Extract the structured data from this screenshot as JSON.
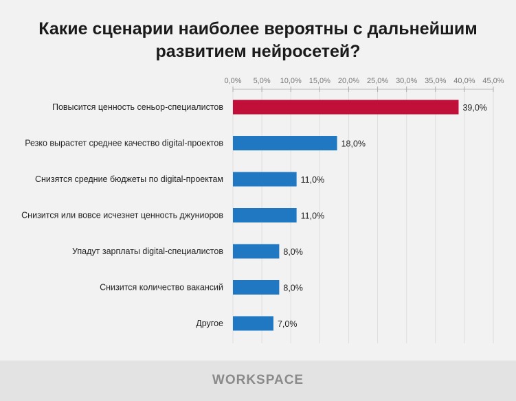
{
  "chart_data": {
    "type": "bar",
    "orientation": "horizontal",
    "title": "Какие сценарии наиболее вероятны с дальнейшим развитием нейросетей?",
    "categories": [
      "Повысится ценность сеньор-специалистов",
      "Резко вырастет среднее качество digital-проектов",
      "Снизятся средние бюджеты по digital-проектам",
      "Снизится или вовсе исчезнет ценность джуниоров",
      "Упадут зарплаты digital-специалистов",
      "Снизится количество вакансий",
      "Другое"
    ],
    "values": [
      39.0,
      18.0,
      11.0,
      11.0,
      8.0,
      8.0,
      7.0
    ],
    "data_labels": [
      "39,0%",
      "18,0%",
      "11,0%",
      "11,0%",
      "8,0%",
      "8,0%",
      "7,0%"
    ],
    "xlim": [
      0,
      45
    ],
    "xticks": [
      "0,0%",
      "5,0%",
      "10,0%",
      "15,0%",
      "20,0%",
      "25,0%",
      "30,0%",
      "35,0%",
      "40,0%",
      "45,0%"
    ],
    "axis_position": "top",
    "colors": {
      "highlight": "#c0103a",
      "default": "#1f78c1"
    }
  },
  "footer": {
    "logo": "WORKSPACE"
  }
}
